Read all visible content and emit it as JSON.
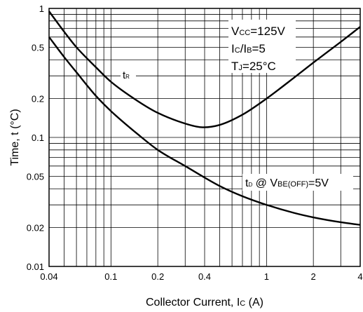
{
  "chart_data": {
    "type": "line",
    "x_scale": "log",
    "y_scale": "log",
    "xlim": [
      0.04,
      4
    ],
    "ylim": [
      0.01,
      1
    ],
    "grid": true,
    "legend": "none",
    "xlabel": {
      "main": "Collector Current, I",
      "sub": "C",
      "suffix": " (A)"
    },
    "ylabel": "Time, t (°C)",
    "x_ticks": [
      {
        "value": 0.04,
        "label": "0.04"
      },
      {
        "value": 0.1,
        "label": "0.1"
      },
      {
        "value": 0.2,
        "label": "0.2"
      },
      {
        "value": 0.4,
        "label": "0.4"
      },
      {
        "value": 1,
        "label": "1"
      },
      {
        "value": 2,
        "label": "2"
      },
      {
        "value": 4,
        "label": "4"
      }
    ],
    "y_ticks": [
      {
        "value": 1,
        "label": "1"
      },
      {
        "value": 0.5,
        "label": "0.5"
      },
      {
        "value": 0.2,
        "label": "0.2"
      },
      {
        "value": 0.1,
        "label": "0.1"
      },
      {
        "value": 0.05,
        "label": "0.05"
      },
      {
        "value": 0.02,
        "label": "0.02"
      },
      {
        "value": 0.01,
        "label": "0.01"
      }
    ],
    "series": [
      {
        "name": "tR",
        "label_main": "t",
        "label_sub": "R",
        "x": [
          0.04,
          0.05,
          0.06,
          0.08,
          0.1,
          0.15,
          0.2,
          0.3,
          0.38,
          0.5,
          0.7,
          1,
          1.5,
          2,
          3,
          4
        ],
        "y": [
          0.95,
          0.66,
          0.5,
          0.35,
          0.27,
          0.19,
          0.155,
          0.128,
          0.12,
          0.125,
          0.15,
          0.2,
          0.29,
          0.38,
          0.55,
          0.72
        ]
      },
      {
        "name": "tD @ VBE(OFF)=5V",
        "label_main": "t",
        "label_sub": "D",
        "label_rest": " @ V",
        "label_rest_sub": "BE(OFF)",
        "label_tail": "=5V",
        "x": [
          0.04,
          0.05,
          0.06,
          0.08,
          0.1,
          0.15,
          0.2,
          0.3,
          0.5,
          0.7,
          1,
          1.5,
          2,
          3,
          4
        ],
        "y": [
          0.6,
          0.42,
          0.32,
          0.21,
          0.16,
          0.105,
          0.08,
          0.06,
          0.042,
          0.035,
          0.03,
          0.026,
          0.024,
          0.022,
          0.021
        ]
      }
    ],
    "conditions": [
      {
        "main": "V",
        "sub": "CC",
        "rest": "=125V"
      },
      {
        "main": "I",
        "sub": "C",
        "rest": "/I",
        "sub2": "B",
        "rest2": "=5"
      },
      {
        "main": "T",
        "sub": "J",
        "rest": "=25°C"
      }
    ],
    "colors": {
      "line": "#000000",
      "grid": "#000000",
      "background": "#ffffff"
    }
  }
}
